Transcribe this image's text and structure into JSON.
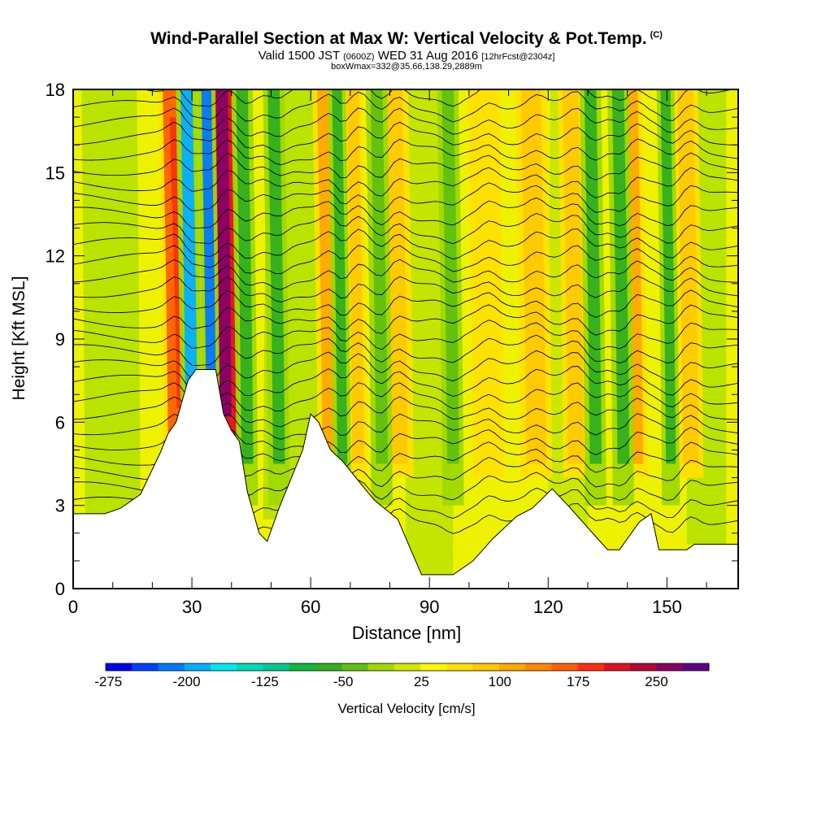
{
  "header": {
    "title": "Wind-Parallel Section at Max W: Vertical Velocity & Pot.Temp.",
    "copyright": "(C)",
    "valid_prefix": "Valid 1500 JST",
    "valid_zulu": "(0600Z)",
    "valid_date": "WED 31 Aug 2016",
    "forecast": "[12hrFcst@2304z]",
    "boxinfo": "boxWmax=332@35.66,138.29,2889m"
  },
  "chart_data": {
    "type": "heatmap",
    "title": "Wind-Parallel Section at Max W: Vertical Velocity & Pot.Temp.",
    "xlabel": "Distance [nm]",
    "ylabel": "Height [Kft MSL]",
    "xlim": [
      0,
      168
    ],
    "ylim": [
      0,
      18
    ],
    "x_ticks": [
      0,
      30,
      60,
      90,
      120,
      150
    ],
    "y_ticks": [
      0,
      3,
      6,
      9,
      12,
      15,
      18
    ],
    "colorbar": {
      "label": "Vertical Velocity [cm/s]",
      "tick_labels": [
        "-275",
        "-200",
        "-125",
        "-50",
        "25",
        "100",
        "175",
        "250"
      ],
      "colors": [
        "#0000f0",
        "#0040ff",
        "#0078ff",
        "#00b0ff",
        "#00e8f0",
        "#00d8b8",
        "#00c890",
        "#10b840",
        "#30b020",
        "#60c010",
        "#a0d800",
        "#d0e800",
        "#f8f800",
        "#ffe000",
        "#ffc800",
        "#ffa800",
        "#ff8800",
        "#ff6000",
        "#ff3010",
        "#e01020",
        "#b00838",
        "#880068",
        "#600088"
      ]
    },
    "terrain_profile_kft": [
      [
        0,
        2.7
      ],
      [
        8,
        2.7
      ],
      [
        12,
        2.9
      ],
      [
        17,
        3.4
      ],
      [
        22,
        4.9
      ],
      [
        24,
        5.6
      ],
      [
        26,
        6.0
      ],
      [
        29,
        7.5
      ],
      [
        31,
        7.9
      ],
      [
        36,
        7.9
      ],
      [
        38,
        6.3
      ],
      [
        40,
        5.7
      ],
      [
        42,
        5.3
      ],
      [
        44,
        3.5
      ],
      [
        47,
        2.0
      ],
      [
        49,
        1.7
      ],
      [
        52,
        2.9
      ],
      [
        58,
        5.0
      ],
      [
        60,
        6.3
      ],
      [
        62,
        6.0
      ],
      [
        65,
        5.0
      ],
      [
        68,
        4.6
      ],
      [
        72,
        3.9
      ],
      [
        76,
        3.2
      ],
      [
        82,
        2.5
      ],
      [
        88,
        0.5
      ],
      [
        96,
        0.5
      ],
      [
        101,
        1.0
      ],
      [
        106,
        1.8
      ],
      [
        112,
        2.6
      ],
      [
        116,
        2.9
      ],
      [
        121,
        3.6
      ],
      [
        125,
        3.0
      ],
      [
        130,
        2.2
      ],
      [
        135,
        1.4
      ],
      [
        138,
        1.4
      ],
      [
        143,
        2.4
      ],
      [
        146,
        2.7
      ],
      [
        148,
        1.4
      ],
      [
        155,
        1.4
      ],
      [
        157,
        1.6
      ],
      [
        168,
        1.6
      ]
    ],
    "updraft_bands_nm": [
      26,
      39,
      65,
      72,
      82,
      105,
      117,
      127,
      142,
      156
    ],
    "downdraft_bands_nm": [
      30,
      35,
      44,
      52,
      68,
      78,
      96,
      132,
      139,
      151
    ]
  }
}
